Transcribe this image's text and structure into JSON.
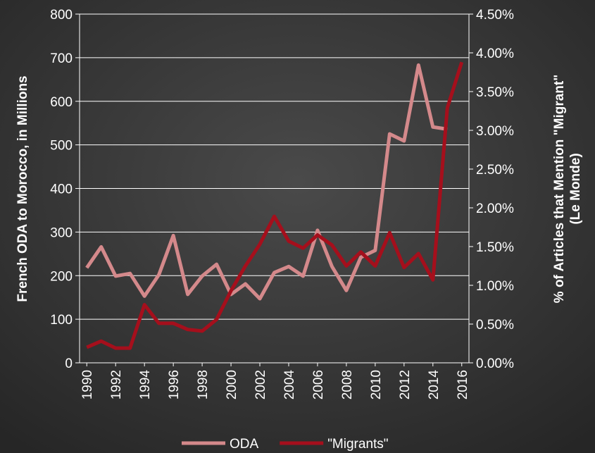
{
  "chart_data": {
    "type": "line",
    "ylabel": "French ODA to Morocco, in Millions",
    "y2label": [
      "% of Articles that Mention \"Migrant\"",
      "(Le Monde)"
    ],
    "x": [
      1990,
      1991,
      1992,
      1993,
      1994,
      1995,
      1996,
      1997,
      1998,
      1999,
      2000,
      2001,
      2002,
      2003,
      2004,
      2005,
      2006,
      2007,
      2008,
      2009,
      2010,
      2011,
      2012,
      2013,
      2014,
      2015,
      2016
    ],
    "xlim": [
      1989.5,
      2016.5
    ],
    "xticks": [
      1990,
      1992,
      1994,
      1996,
      1998,
      2000,
      2002,
      2004,
      2006,
      2008,
      2010,
      2012,
      2014,
      2016
    ],
    "ylim": [
      0,
      800
    ],
    "yticks": [
      0,
      100,
      200,
      300,
      400,
      500,
      600,
      700,
      800
    ],
    "y2lim": [
      0,
      4.5
    ],
    "y2ticks": [
      {
        "value": 0,
        "label": "0.00%"
      },
      {
        "value": 0.5,
        "label": "0.50%"
      },
      {
        "value": 1,
        "label": "1.00%"
      },
      {
        "value": 1.5,
        "label": "1.50%"
      },
      {
        "value": 2,
        "label": "2.00%"
      },
      {
        "value": 2.5,
        "label": "2.50%"
      },
      {
        "value": 3,
        "label": "3.00%"
      },
      {
        "value": 3.5,
        "label": "3.50%"
      },
      {
        "value": 4,
        "label": "4.00%"
      },
      {
        "value": 4.5,
        "label": "4.50%"
      }
    ],
    "grid": true,
    "legend": "bottom",
    "series": [
      {
        "name": "ODA",
        "color": "#d4898b",
        "values": [
          218,
          266,
          199,
          205,
          153,
          202,
          292,
          157,
          199,
          226,
          157,
          181,
          147,
          207,
          221,
          199,
          304,
          221,
          166,
          242,
          258,
          525,
          509,
          683,
          541,
          536,
          null
        ]
      },
      {
        "name": "\"Migrants\"",
        "color": "#a50f1c",
        "axis": "y2",
        "values": [
          0.2,
          0.28,
          0.19,
          0.19,
          0.75,
          0.51,
          0.51,
          0.43,
          0.41,
          0.56,
          0.93,
          1.25,
          1.53,
          1.89,
          1.57,
          1.48,
          1.65,
          1.52,
          1.25,
          1.43,
          1.25,
          1.68,
          1.23,
          1.41,
          1.07,
          3.29,
          3.88
        ]
      }
    ]
  }
}
